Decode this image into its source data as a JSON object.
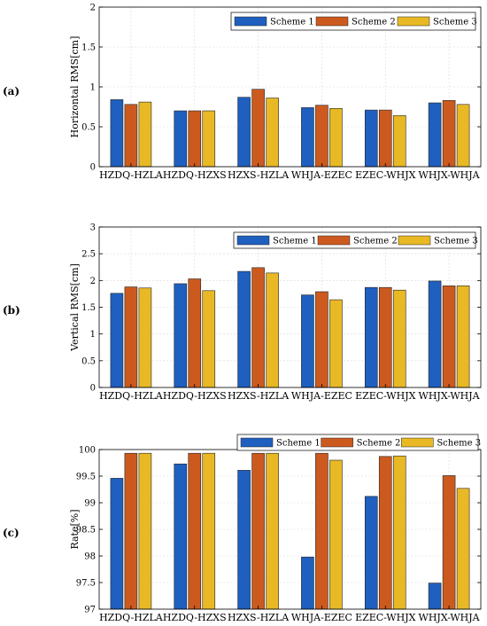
{
  "colors": {
    "scheme1": "#1f5fbf",
    "scheme2": "#cc5a1e",
    "scheme3": "#e8b925"
  },
  "chart_data": [
    {
      "type": "bar",
      "panel_label": "(a)",
      "ylabel": "Horizontal RMS[cm]",
      "ylim": [
        0,
        2
      ],
      "yticks": [
        0,
        0.5,
        1,
        1.5,
        2
      ],
      "grid": true,
      "legend": "top-right",
      "categories": [
        "HZDQ-HZLA",
        "HZDQ-HZXS",
        "HZXS-HZLA",
        "WHJA-EZEC",
        "EZEC-WHJX",
        "WHJX-WHJA"
      ],
      "series": [
        {
          "name": "Scheme 1",
          "values": [
            0.84,
            0.7,
            0.87,
            0.74,
            0.71,
            0.8
          ]
        },
        {
          "name": "Scheme 2",
          "values": [
            0.78,
            0.7,
            0.97,
            0.77,
            0.71,
            0.83
          ]
        },
        {
          "name": "Scheme 3",
          "values": [
            0.81,
            0.7,
            0.86,
            0.73,
            0.64,
            0.78
          ]
        }
      ]
    },
    {
      "type": "bar",
      "panel_label": "(b)",
      "ylabel": "Vertical RMS[cm]",
      "ylim": [
        0,
        3
      ],
      "yticks": [
        0,
        0.5,
        1,
        1.5,
        2,
        2.5,
        3
      ],
      "grid": true,
      "legend": "top-right",
      "categories": [
        "HZDQ-HZLA",
        "HZDQ-HZXS",
        "HZXS-HZLA",
        "WHJA-EZEC",
        "EZEC-WHJX",
        "WHJX-WHJA"
      ],
      "series": [
        {
          "name": "Scheme 1",
          "values": [
            1.76,
            1.94,
            2.17,
            1.73,
            1.87,
            1.99
          ]
        },
        {
          "name": "Scheme 2",
          "values": [
            1.88,
            2.03,
            2.24,
            1.79,
            1.87,
            1.9
          ]
        },
        {
          "name": "Scheme 3",
          "values": [
            1.86,
            1.81,
            2.14,
            1.64,
            1.82,
            1.9
          ]
        }
      ]
    },
    {
      "type": "bar",
      "panel_label": "(c)",
      "ylabel": "Rate[%]",
      "ylim": [
        97,
        100
      ],
      "yticks": [
        97,
        97.5,
        98,
        98.5,
        99,
        99.5,
        100
      ],
      "grid": true,
      "legend": "top-right",
      "categories": [
        "HZDQ-HZLA",
        "HZDQ-HZXS",
        "HZXS-HZLA",
        "WHJA-EZEC",
        "EZEC-WHJX",
        "WHJX-WHJA"
      ],
      "series": [
        {
          "name": "Scheme 1",
          "values": [
            99.46,
            99.73,
            99.61,
            97.98,
            99.12,
            97.49
          ]
        },
        {
          "name": "Scheme 2",
          "values": [
            99.93,
            99.93,
            99.93,
            99.93,
            99.87,
            99.51
          ]
        },
        {
          "name": "Scheme 3",
          "values": [
            99.93,
            99.93,
            99.93,
            99.8,
            99.88,
            99.27
          ]
        }
      ]
    }
  ]
}
